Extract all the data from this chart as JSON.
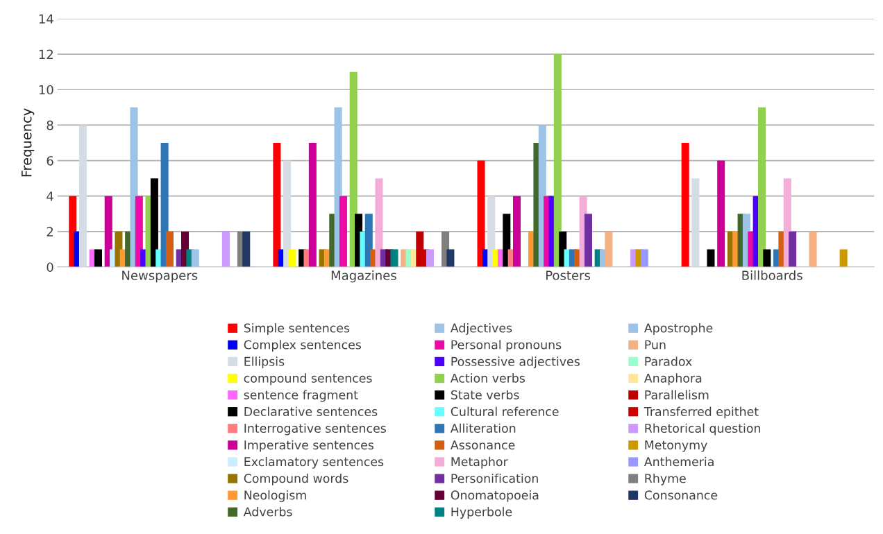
{
  "chart_data": {
    "type": "bar",
    "ylabel": "Frequency",
    "categories": [
      "Newspapers",
      "Magazines",
      "Posters",
      "Billboards"
    ],
    "ylim": [
      0,
      14
    ],
    "yticks": [
      0,
      2,
      4,
      6,
      8,
      10,
      12,
      14
    ],
    "grid": "y",
    "legend": "bottom",
    "series": [
      {
        "name": "Simple sentences",
        "color": "#ff0000",
        "values": [
          4,
          7,
          6,
          7
        ]
      },
      {
        "name": "Complex sentences",
        "color": "#0000ff",
        "values": [
          2,
          1,
          1,
          0
        ]
      },
      {
        "name": "Ellipsis",
        "color": "#d6dce4",
        "values": [
          8,
          6,
          4,
          5
        ]
      },
      {
        "name": "compound sentences",
        "color": "#ffff00",
        "values": [
          0,
          1,
          1,
          0
        ]
      },
      {
        "name": "sentence fragment",
        "color": "#ff66ff",
        "values": [
          1,
          0,
          1,
          0
        ]
      },
      {
        "name": "Declarative sentences",
        "color": "#000000",
        "values": [
          1,
          1,
          3,
          1
        ]
      },
      {
        "name": "Interrogative sentences",
        "color": "#ff7c80",
        "values": [
          0,
          1,
          1,
          0
        ]
      },
      {
        "name": "Imperative sentences",
        "color": "#cc0099",
        "values": [
          4,
          7,
          4,
          6
        ]
      },
      {
        "name": "Exclamatory sentences",
        "color": "#ccecff",
        "values": [
          1,
          0,
          0,
          0
        ]
      },
      {
        "name": "Compound words",
        "color": "#997300",
        "values": [
          2,
          1,
          0,
          2
        ]
      },
      {
        "name": "Neologism",
        "color": "#ff9933",
        "values": [
          1,
          1,
          2,
          2
        ]
      },
      {
        "name": "Adverbs",
        "color": "#43682b",
        "values": [
          2,
          3,
          7,
          3
        ]
      },
      {
        "name": "Adjectives",
        "color": "#9dc3e6",
        "values": [
          9,
          9,
          8,
          3
        ]
      },
      {
        "name": "Personal pronouns",
        "color": "#ee0aa6",
        "values": [
          4,
          4,
          4,
          2
        ]
      },
      {
        "name": "Possessive adjectives",
        "color": "#4d00ff",
        "values": [
          1,
          0,
          4,
          4
        ]
      },
      {
        "name": "Action verbs",
        "color": "#92d050",
        "values": [
          4,
          11,
          12,
          9
        ]
      },
      {
        "name": "State verbs",
        "color": "#000000",
        "values": [
          5,
          3,
          2,
          1
        ]
      },
      {
        "name": "Cultural reference",
        "color": "#66ffff",
        "values": [
          1,
          2,
          1,
          0
        ]
      },
      {
        "name": "Alliteration",
        "color": "#2e75b6",
        "values": [
          7,
          3,
          1,
          1
        ]
      },
      {
        "name": "Assonance",
        "color": "#d45f13",
        "values": [
          2,
          1,
          1,
          2
        ]
      },
      {
        "name": "Metaphor",
        "color": "#f4acd8",
        "values": [
          0,
          5,
          4,
          5
        ]
      },
      {
        "name": "Personification",
        "color": "#7030a0",
        "values": [
          1,
          1,
          3,
          2
        ]
      },
      {
        "name": "Onomatopoeia",
        "color": "#660033",
        "values": [
          2,
          1,
          0,
          0
        ]
      },
      {
        "name": "Hyperbole",
        "color": "#008080",
        "values": [
          1,
          1,
          1,
          0
        ]
      },
      {
        "name": "Apostrophe",
        "color": "#9dc3e6",
        "values": [
          1,
          0,
          1,
          0
        ]
      },
      {
        "name": "Pun",
        "color": "#f4b183",
        "values": [
          0,
          1,
          2,
          2
        ]
      },
      {
        "name": "Paradox",
        "color": "#99ffcc",
        "values": [
          0,
          1,
          0,
          0
        ]
      },
      {
        "name": "Anaphora",
        "color": "#ffe699",
        "values": [
          0,
          1,
          0,
          0
        ]
      },
      {
        "name": "Parallelism",
        "color": "#c00000",
        "values": [
          0,
          2,
          0,
          0
        ]
      },
      {
        "name": "Transferred epithet",
        "color": "#cc0000",
        "values": [
          0,
          1,
          0,
          0
        ]
      },
      {
        "name": "Rhetorical question",
        "color": "#cc99ff",
        "values": [
          2,
          1,
          1,
          0
        ]
      },
      {
        "name": "Metonymy",
        "color": "#cc9900",
        "values": [
          0,
          0,
          1,
          1
        ]
      },
      {
        "name": "Anthemeria",
        "color": "#9999ff",
        "values": [
          0,
          0,
          1,
          0
        ]
      },
      {
        "name": "Rhyme",
        "color": "#7f7f7f",
        "values": [
          2,
          2,
          0,
          0
        ]
      },
      {
        "name": "Consonance",
        "color": "#203864",
        "values": [
          2,
          1,
          0,
          0
        ]
      }
    ]
  }
}
